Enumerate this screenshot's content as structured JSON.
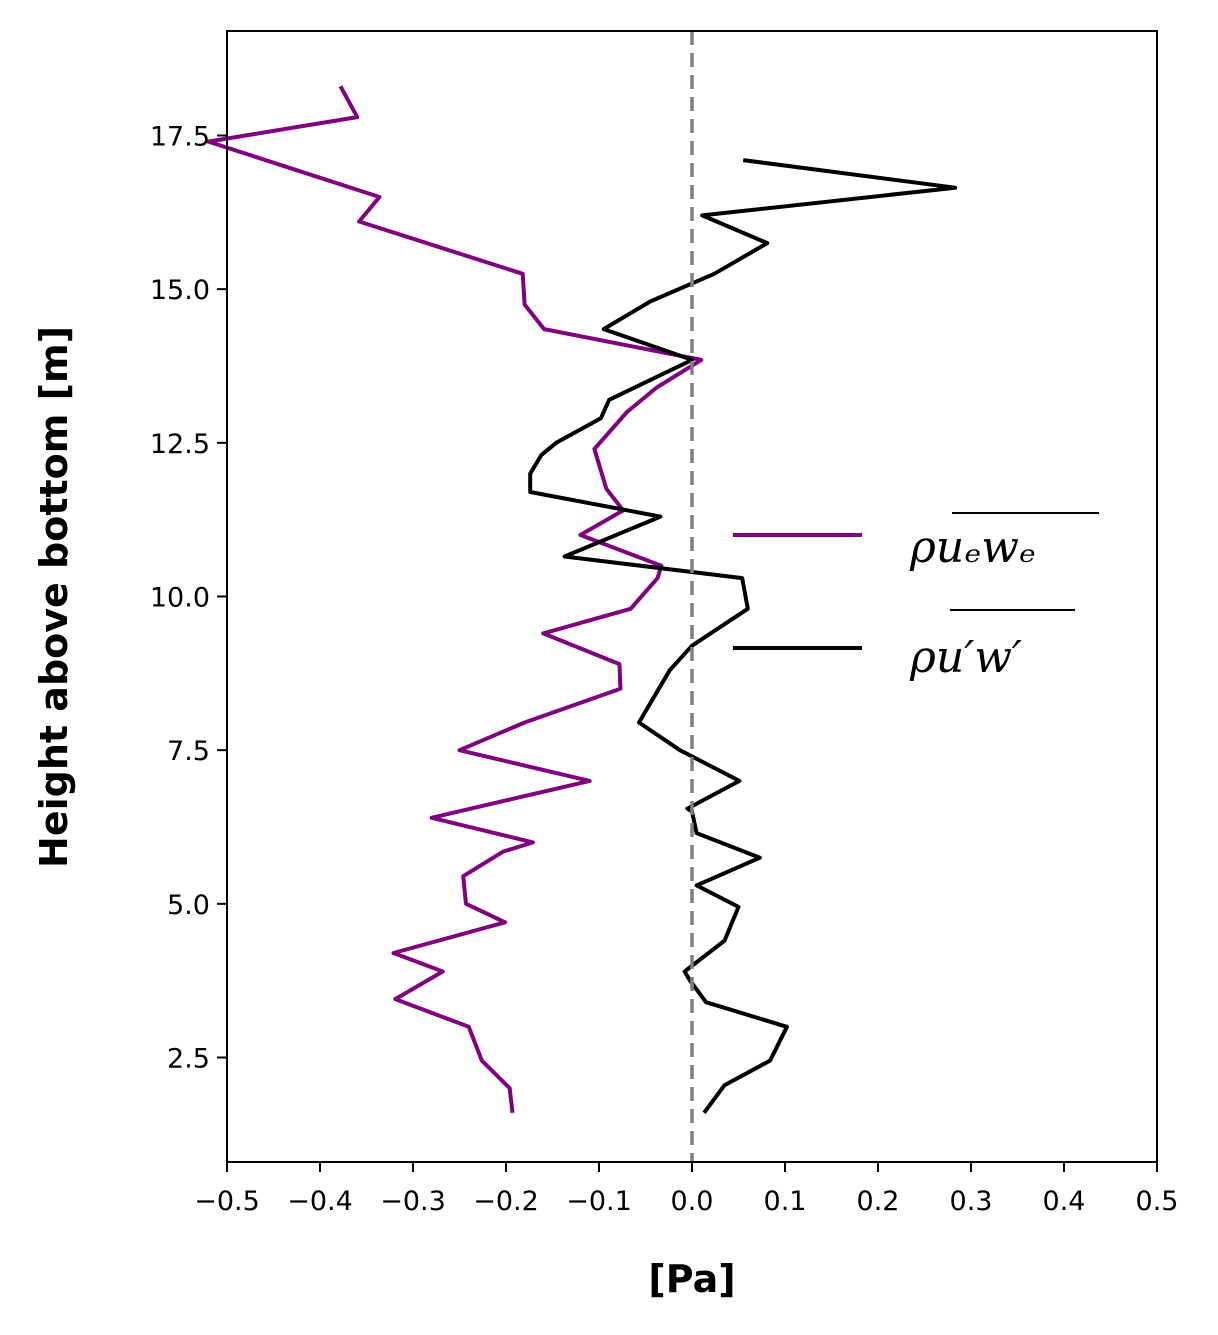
{
  "chart_data": {
    "type": "line",
    "xlabel": "[Pa]",
    "ylabel": "Height above bottom [m]",
    "xlim": [
      -0.5,
      0.5
    ],
    "ylim": [
      0.8,
      19.2
    ],
    "xticks": [
      -0.5,
      -0.4,
      -0.3,
      -0.2,
      -0.1,
      0.0,
      0.1,
      0.2,
      0.3,
      0.4,
      0.5
    ],
    "xtick_labels": [
      "−0.5",
      "−0.4",
      "−0.3",
      "−0.2",
      "−0.1",
      "0.0",
      "0.1",
      "0.2",
      "0.3",
      "0.4",
      "0.5"
    ],
    "yticks": [
      2.5,
      5.0,
      7.5,
      10.0,
      12.5,
      15.0,
      17.5
    ],
    "ytick_labels": [
      "2.5",
      "5.0",
      "7.5",
      "10.0",
      "12.5",
      "15.0",
      "17.5"
    ],
    "grid": false,
    "legend_position": "center-right",
    "reference_line": {
      "x": 0.0,
      "color": "#808080",
      "style": "dashed"
    },
    "series": [
      {
        "name": "ρuₑwₑ",
        "color": "#800080",
        "x": [
          -0.193,
          -0.196,
          -0.226,
          -0.24,
          -0.319,
          -0.268,
          -0.321,
          -0.201,
          -0.243,
          -0.246,
          -0.203,
          -0.171,
          -0.28,
          -0.11,
          -0.25,
          -0.18,
          -0.077,
          -0.078,
          -0.16,
          -0.066,
          -0.037,
          -0.033,
          -0.12,
          -0.074,
          -0.092,
          -0.105,
          -0.07,
          -0.038,
          0.01,
          -0.159,
          -0.18,
          -0.182,
          -0.358,
          -0.336,
          -0.52,
          -0.36,
          -0.378
        ],
        "y": [
          1.6,
          2.0,
          2.45,
          3.0,
          3.45,
          3.9,
          4.2,
          4.7,
          5.0,
          5.45,
          5.85,
          6.0,
          6.4,
          7.0,
          7.5,
          7.95,
          8.5,
          8.9,
          9.4,
          9.8,
          10.3,
          10.5,
          11.0,
          11.4,
          11.75,
          12.4,
          13.0,
          13.4,
          13.85,
          14.35,
          14.75,
          15.25,
          16.1,
          16.5,
          17.4,
          17.8,
          18.3
        ]
      },
      {
        "name": "ρu′w′",
        "color": "#000000",
        "x": [
          0.013,
          0.035,
          0.084,
          0.102,
          0.015,
          -0.002,
          -0.008,
          0.035,
          0.05,
          0.005,
          0.073,
          0.005,
          0.0,
          -0.005,
          0.051,
          -0.013,
          -0.057,
          -0.024,
          0.0,
          0.06,
          0.054,
          -0.137,
          -0.034,
          -0.174,
          -0.174,
          -0.162,
          -0.146,
          -0.098,
          -0.089,
          0.0,
          -0.095,
          -0.045,
          0.024,
          0.081,
          0.011,
          0.283,
          0.055
        ],
        "y": [
          1.6,
          2.05,
          2.45,
          3.0,
          3.4,
          3.75,
          3.9,
          4.4,
          4.95,
          5.3,
          5.75,
          6.15,
          6.5,
          6.55,
          7.0,
          7.5,
          7.95,
          8.8,
          9.2,
          9.8,
          10.3,
          10.65,
          11.3,
          11.7,
          12.0,
          12.3,
          12.5,
          12.9,
          13.2,
          13.85,
          14.35,
          14.8,
          15.25,
          15.75,
          16.2,
          16.65,
          17.1
        ]
      }
    ]
  }
}
